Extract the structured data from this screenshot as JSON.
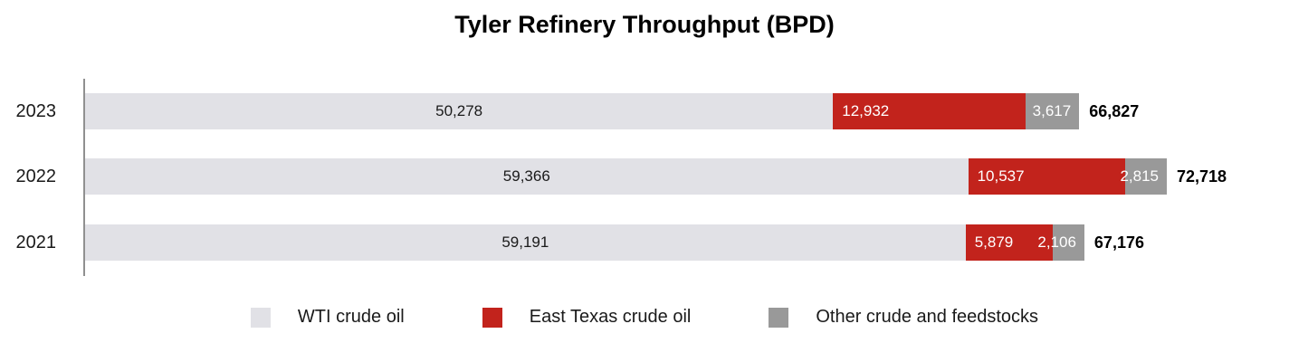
{
  "title": "Tyler Refinery Throughput (BPD)",
  "chart_data": {
    "type": "bar",
    "orientation": "horizontal",
    "stacked": true,
    "title": "Tyler Refinery Throughput (BPD)",
    "categories": [
      "2023",
      "2022",
      "2021"
    ],
    "series": [
      {
        "name": "WTI crude oil",
        "color": "#e1e1e6",
        "values": [
          50278,
          59366,
          59191
        ],
        "labels": [
          "50,278",
          "59,366",
          "59,191"
        ],
        "label_color": "#1a1a1a",
        "label_align": "center"
      },
      {
        "name": "East Texas crude oil",
        "color": "#c2231c",
        "values": [
          12932,
          10537,
          5879
        ],
        "labels": [
          "12,932",
          "10,537",
          "5,879"
        ],
        "label_color": "#ffffff",
        "label_align": "left"
      },
      {
        "name": "Other crude and feedstocks",
        "color": "#999999",
        "values": [
          3617,
          2815,
          2106
        ],
        "labels": [
          "3,617",
          "2,815",
          "2,106"
        ],
        "label_color": "#ffffff",
        "label_align": "right"
      }
    ],
    "totals": [
      66827,
      72718,
      67176
    ],
    "total_labels": [
      "66,827",
      "72,718",
      "67,176"
    ],
    "axis_color": "#909090",
    "legend_position": "bottom",
    "grid": false
  }
}
